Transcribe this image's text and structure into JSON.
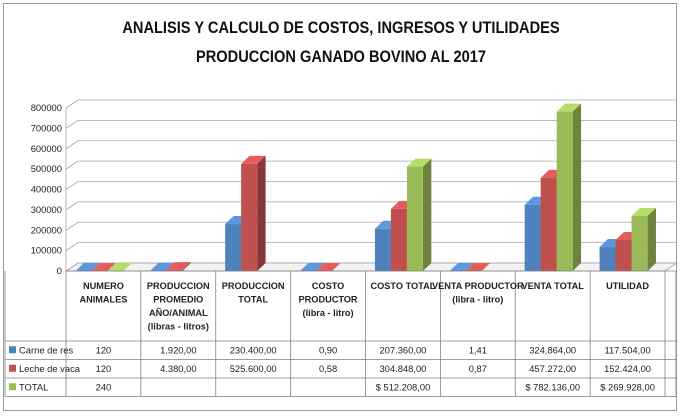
{
  "chart_data": {
    "type": "bar",
    "title": "ANALISIS Y CALCULO DE COSTOS, INGRESOS Y UTILIDADES",
    "subtitle": "PRODUCCION GANADO BOVINO AL 2017",
    "ylim": [
      0,
      800000
    ],
    "yticks": [
      "0",
      "100000",
      "200000",
      "300000",
      "400000",
      "500000",
      "600000",
      "700000",
      "800000"
    ],
    "grid": true,
    "categories": [
      [
        "NUMERO",
        "ANIMALES"
      ],
      [
        "PRODUCCION",
        "PROMEDIO",
        "AÑO/ANIMAL",
        "(libras - litros)"
      ],
      [
        "PRODUCCION",
        "TOTAL"
      ],
      [
        "COSTO",
        "PRODUCTOR",
        "(libra - litro)"
      ],
      [
        "COSTO TOTAL"
      ],
      [
        "VENTA PRODUCTOR",
        "(libra - litro)"
      ],
      [
        "VENTA    TOTAL"
      ],
      [
        "UTILIDAD"
      ]
    ],
    "series": [
      {
        "name": "Carne de res",
        "color": "#4f81bd",
        "values": [
          120,
          1920,
          230400,
          0.9,
          207360,
          1.41,
          324864,
          117504
        ],
        "labels": [
          "120",
          "1.920,00",
          "230.400,00",
          "0,90",
          "207.360,00",
          "1,41",
          "324.864,00",
          "117.504,00"
        ]
      },
      {
        "name": "Leche de vaca",
        "color": "#c0504d",
        "values": [
          120,
          4380,
          525600,
          0.58,
          304848,
          0.87,
          457272,
          152424
        ],
        "labels": [
          "120",
          "4.380,00",
          "525.600,00",
          "0,58",
          "304.848,00",
          "0,87",
          "457.272,00",
          "152.424,00"
        ]
      },
      {
        "name": "TOTAL",
        "color": "#9bbb59",
        "values": [
          240,
          null,
          null,
          null,
          512208,
          null,
          782136,
          269928
        ],
        "labels": [
          "240",
          "",
          "",
          "",
          "$ 512.208,00",
          "",
          "$ 782.136,00",
          "$ 269.928,00"
        ]
      }
    ]
  }
}
